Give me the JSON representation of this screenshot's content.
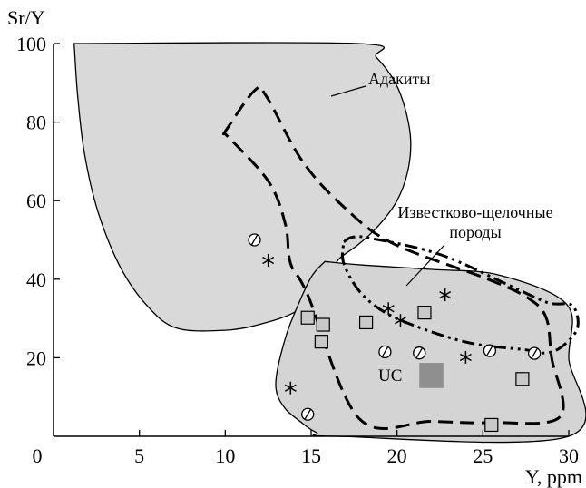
{
  "chart_data": {
    "type": "scatter",
    "title": "",
    "xlabel": "Y, ppm",
    "ylabel": "Sr/Y",
    "xlim": [
      0,
      30
    ],
    "ylim": [
      0,
      100
    ],
    "x_ticks": [
      0,
      5,
      10,
      15,
      20,
      25,
      30
    ],
    "y_ticks": [
      20,
      40,
      60,
      80,
      100
    ],
    "x_tick_labels": [
      "0",
      "5",
      "10",
      "15",
      "20",
      "25",
      "30"
    ],
    "y_tick_labels": [
      "20",
      "40",
      "60",
      "80",
      "100"
    ],
    "grid": false,
    "colors": {
      "adakite_field": "#d9d9d9",
      "second_field": "#d4d4d4",
      "uc_box": "#8f8f8f",
      "square_marker": "#c9c9c9",
      "ink": "#000000"
    },
    "regions": [
      {
        "label": "Адакиты",
        "style": "solid-outline-filled",
        "polygon": [
          [
            1.2,
            100
          ],
          [
            17.7,
            100
          ],
          [
            18.8,
            96.5
          ],
          [
            19.9,
            90
          ],
          [
            20.5,
            83
          ],
          [
            20.8,
            75
          ],
          [
            20.6,
            67
          ],
          [
            20,
            60
          ],
          [
            19,
            54
          ],
          [
            17.8,
            49
          ],
          [
            16.7,
            45.5
          ],
          [
            16.3,
            43
          ],
          [
            15.4,
            36.5
          ],
          [
            14,
            31.5
          ],
          [
            12,
            28.5
          ],
          [
            10,
            27
          ],
          [
            7.2,
            27.5
          ],
          [
            5.5,
            33
          ],
          [
            3.9,
            43
          ],
          [
            2.6,
            57
          ],
          [
            1.8,
            72
          ],
          [
            1.4,
            87
          ],
          [
            1.2,
            100
          ]
        ]
      },
      {
        "label": "",
        "style": "solid-outline-filled",
        "polygon": [
          [
            15.8,
            44.5
          ],
          [
            18,
            43.6
          ],
          [
            22,
            42.5
          ],
          [
            26,
            41
          ],
          [
            29.9,
            33.5
          ],
          [
            30,
            20
          ],
          [
            30,
            0
          ],
          [
            16.5,
            0
          ],
          [
            15.3,
            1
          ],
          [
            14.3,
            4
          ],
          [
            13.5,
            7
          ],
          [
            13,
            11
          ],
          [
            13,
            16
          ],
          [
            13.5,
            25
          ],
          [
            14,
            31
          ],
          [
            15,
            40.5
          ],
          [
            15.8,
            44.5
          ]
        ]
      },
      {
        "label": "",
        "style": "dashed-outline",
        "polygon": [
          [
            9.9,
            77
          ],
          [
            11.7,
            88
          ],
          [
            12.4,
            86.5
          ],
          [
            14.5,
            70
          ],
          [
            17,
            58
          ],
          [
            19.8,
            49
          ],
          [
            25.3,
            40
          ],
          [
            27.7,
            35
          ],
          [
            28.7,
            30
          ],
          [
            29,
            20
          ],
          [
            29.5,
            5
          ],
          [
            25.5,
            3.5
          ],
          [
            22,
            3.8
          ],
          [
            17.8,
            4.5
          ],
          [
            14.8,
            36
          ],
          [
            13.8,
            44
          ],
          [
            13.5,
            54
          ],
          [
            12.5,
            65
          ],
          [
            10,
            77
          ]
        ]
      },
      {
        "label": "Известково-щелочные породы",
        "style": "dash-dot-outline",
        "polygon": [
          [
            16.9,
            49.5
          ],
          [
            17.4,
            50.7
          ],
          [
            18.5,
            50.4
          ],
          [
            22.5,
            46.3
          ],
          [
            26.5,
            38.5
          ],
          [
            28.8,
            34
          ],
          [
            30.2,
            33.3
          ],
          [
            30.5,
            27.5
          ],
          [
            29.5,
            22.5
          ],
          [
            28.5,
            21.2
          ],
          [
            27.5,
            22
          ],
          [
            24,
            24
          ],
          [
            20,
            30
          ],
          [
            18,
            36
          ],
          [
            16.9,
            44
          ],
          [
            16.9,
            49.5
          ]
        ]
      }
    ],
    "uc_label": "UC",
    "uc_box": {
      "x0": 21.3,
      "x1": 22.7,
      "y0": 12.3,
      "y1": 18.7
    },
    "series": [
      {
        "marker": "circle-with-slash",
        "points": [
          [
            11.7,
            50
          ],
          [
            14.8,
            5.6
          ],
          [
            19.3,
            21.5
          ],
          [
            21.3,
            21.2
          ],
          [
            25.4,
            21.8
          ],
          [
            28,
            21.1
          ]
        ]
      },
      {
        "marker": "asterisk",
        "points": [
          [
            12.5,
            44.8
          ],
          [
            13.8,
            12.3
          ],
          [
            19.5,
            32.5
          ],
          [
            20.2,
            29.5
          ],
          [
            22.8,
            36
          ],
          [
            24,
            20.1
          ]
        ]
      },
      {
        "marker": "square",
        "points": [
          [
            14.8,
            30.2
          ],
          [
            15.7,
            28.4
          ],
          [
            15.6,
            24.1
          ],
          [
            18.2,
            29
          ],
          [
            21.6,
            31.5
          ],
          [
            25.5,
            2.9
          ],
          [
            27.3,
            14.6
          ]
        ]
      }
    ]
  }
}
